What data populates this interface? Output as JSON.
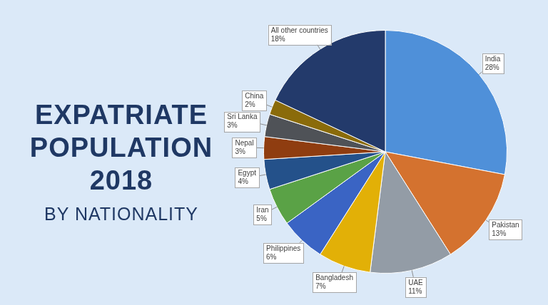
{
  "chart_data": {
    "type": "pie",
    "title": "EXPATRIATE POPULATION 2018",
    "subtitle": "BY NATIONALITY",
    "categories": [
      "India",
      "Pakistan",
      "UAE",
      "Bangladesh",
      "Philippines",
      "Iran",
      "Egypt",
      "Nepal",
      "Sri Lanka",
      "China",
      "All other countries"
    ],
    "values": [
      28,
      13,
      11,
      7,
      6,
      5,
      4,
      3,
      3,
      2,
      18
    ],
    "value_labels": [
      "28%",
      "13%",
      "11%",
      "7%",
      "6%",
      "5%",
      "4%",
      "3%",
      "3%",
      "2%",
      "18%"
    ],
    "colors": [
      "#4f90d9",
      "#d4722f",
      "#939ca6",
      "#e2b007",
      "#3a64c4",
      "#5aa246",
      "#24518a",
      "#8f3d10",
      "#4f5257",
      "#8a6b0a",
      "#233a6b"
    ],
    "data_labels": true,
    "legend": false
  }
}
